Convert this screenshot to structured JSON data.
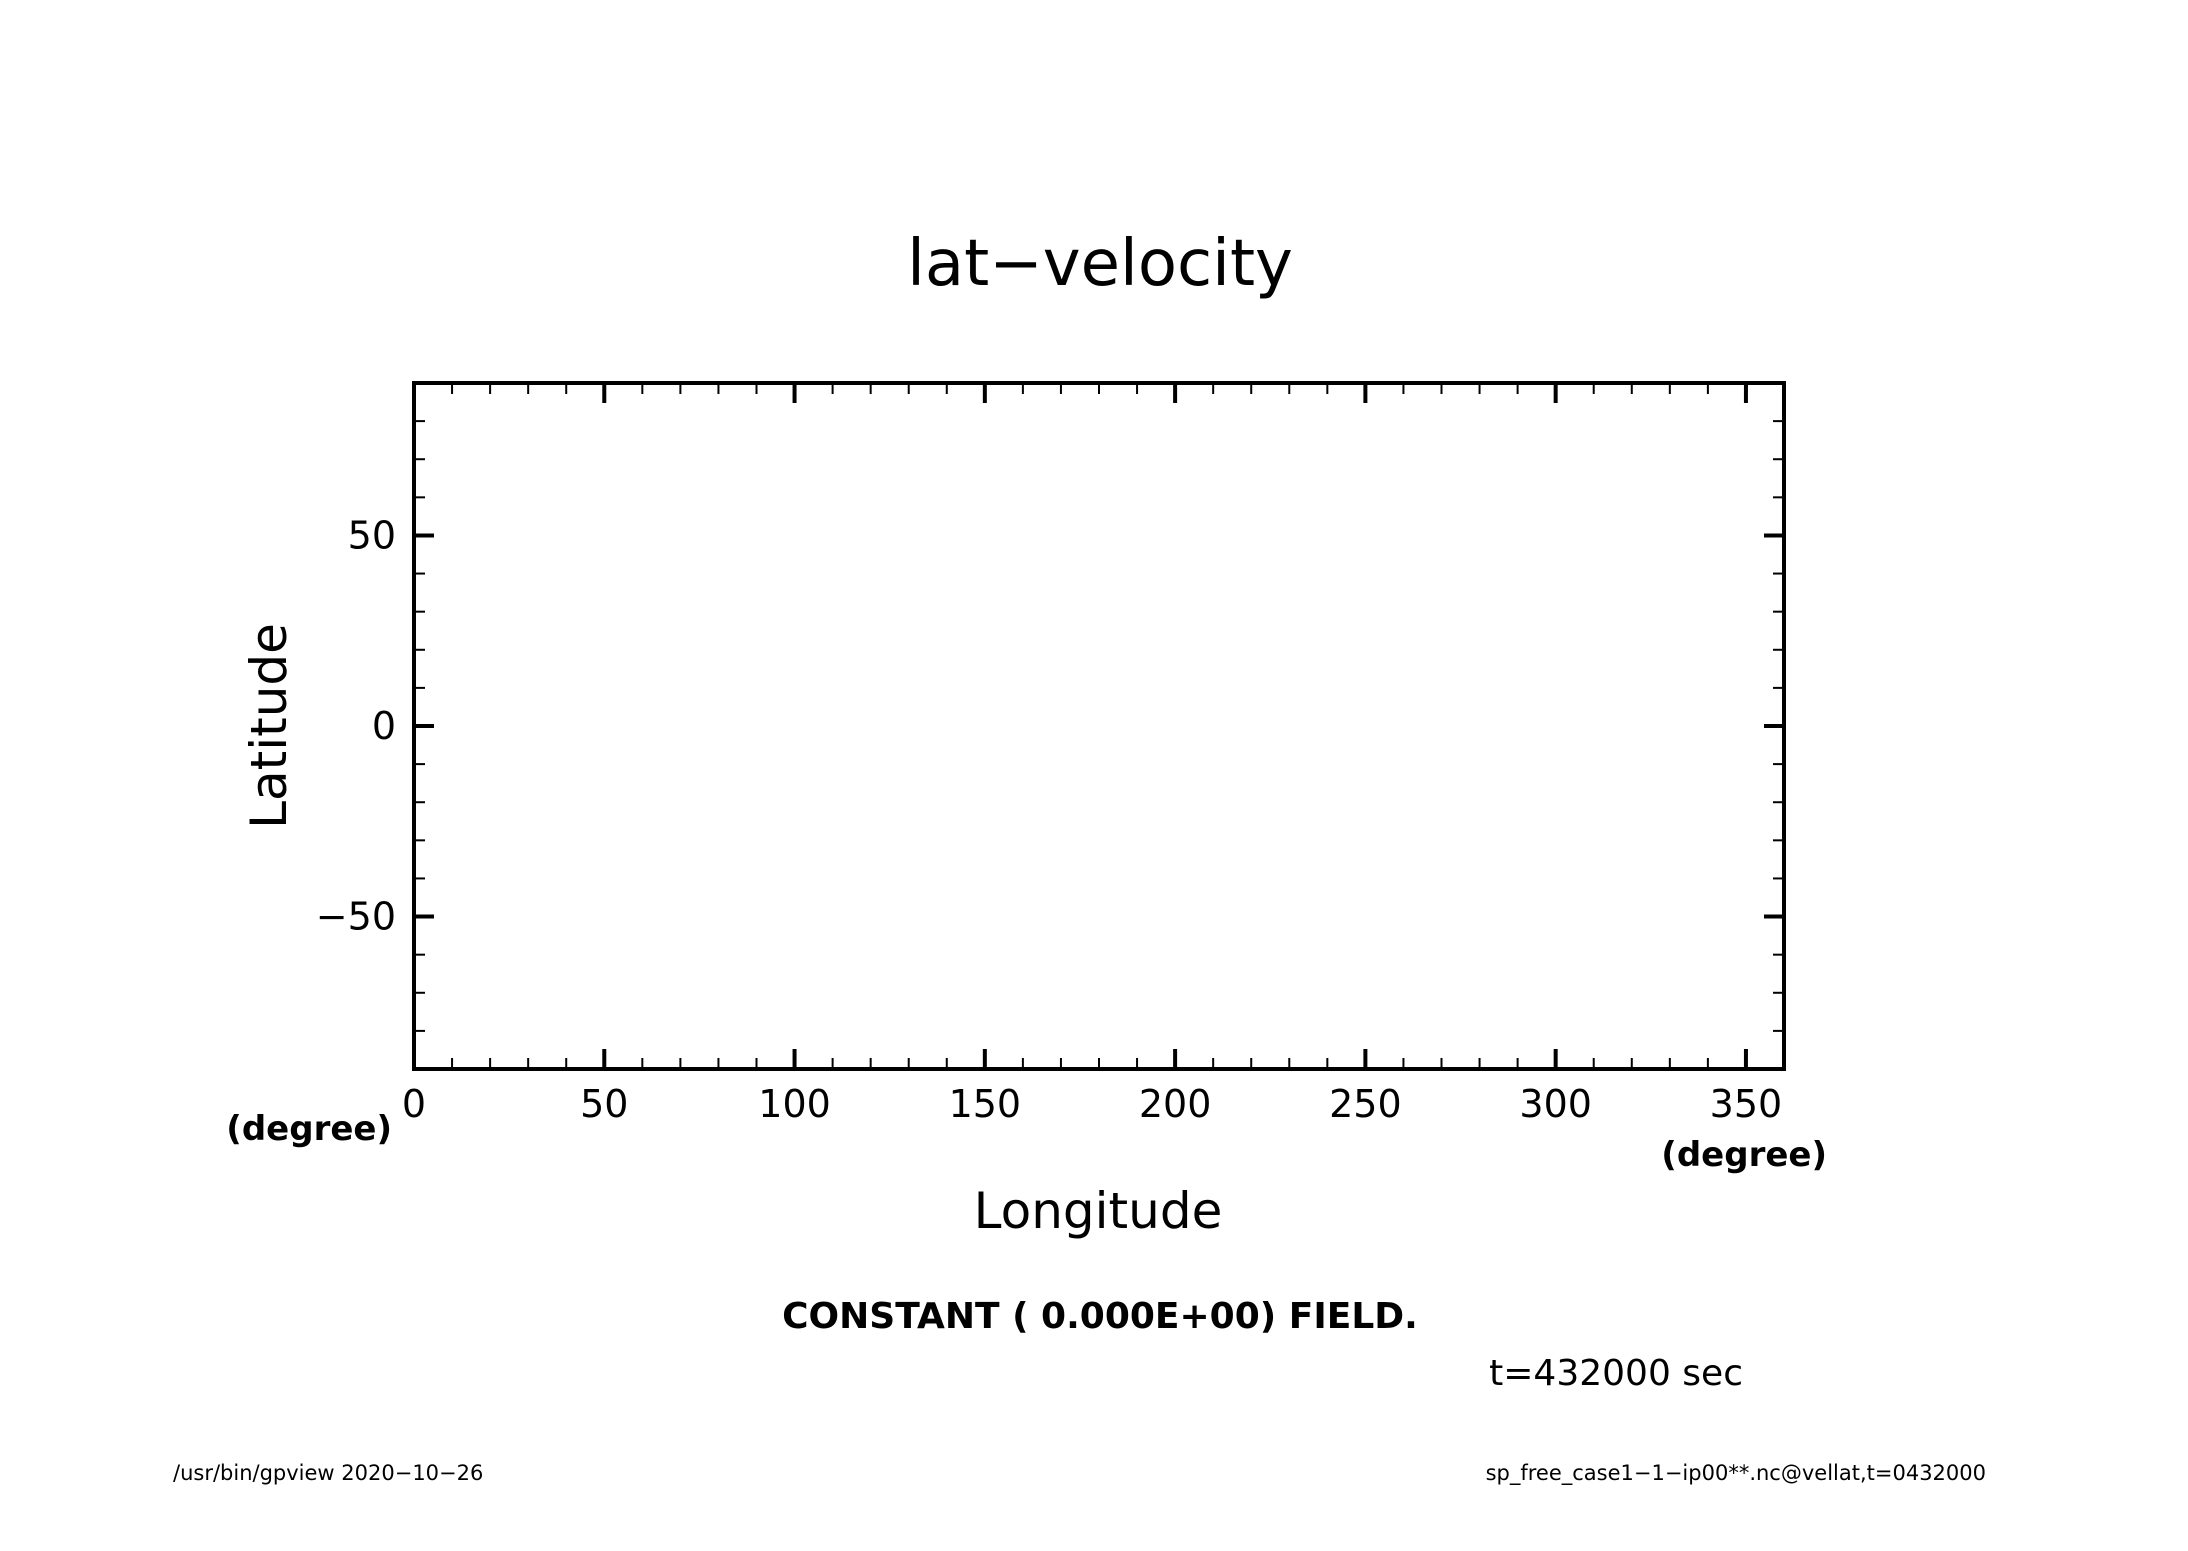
{
  "chart_data": {
    "type": "heatmap",
    "title": "lat−velocity",
    "xlabel": "Longitude",
    "ylabel": "Latitude",
    "x_unit": "(degree)",
    "y_unit": "(degree)",
    "xlim": [
      0,
      360
    ],
    "ylim": [
      -90,
      90
    ],
    "x_ticks": [
      0,
      50,
      100,
      150,
      200,
      250,
      300,
      350
    ],
    "y_ticks": [
      -50,
      0,
      50
    ],
    "x_tick_labels": [
      "0",
      "50",
      "100",
      "150",
      "200",
      "250",
      "300",
      "350"
    ],
    "y_tick_labels": [
      "−50",
      "0",
      "50"
    ],
    "x_minor_step": 10,
    "y_minor_step": 10,
    "grid": false,
    "field_value": 0.0,
    "note": "CONSTANT ( 0.000E+00) FIELD.",
    "time_label": "t=432000 sec"
  },
  "footer": {
    "left": "/usr/bin/gpview   2020−10−26",
    "right": "sp_free_case1−1−ip00**.nc@vellat,t=0432000"
  }
}
